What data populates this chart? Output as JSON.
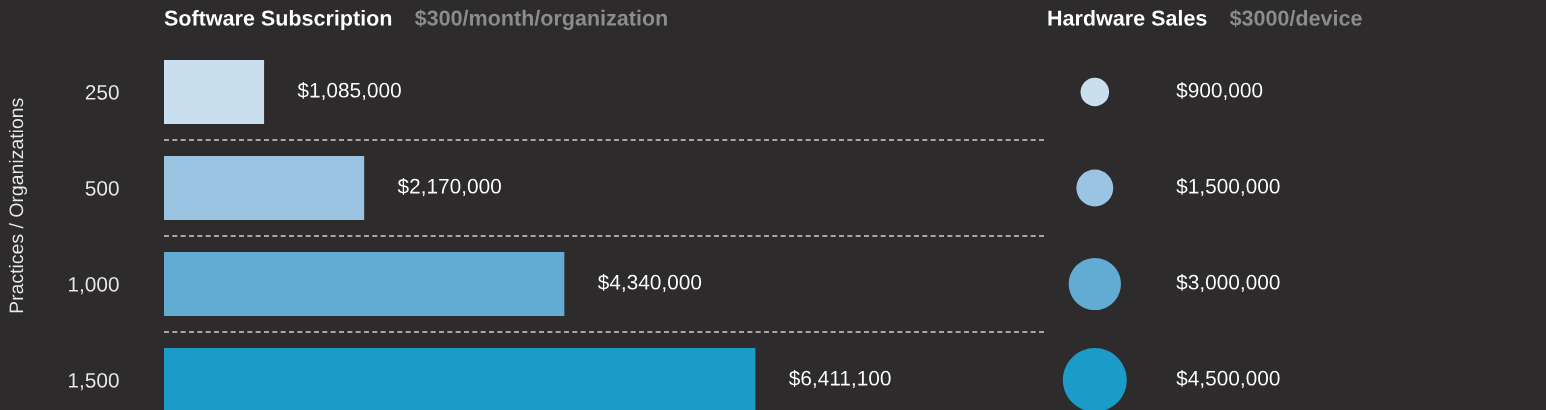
{
  "chart_data": [
    {
      "type": "bar",
      "orientation": "horizontal",
      "title": "Software Subscription",
      "subtitle": "$300/month/organization",
      "ylabel": "Practices / Organizations",
      "grid": "y",
      "categories": [
        "250",
        "500",
        "1,000",
        "1,500"
      ],
      "values": [
        1085000,
        2170000,
        4340000,
        6411100
      ],
      "colors": [
        "#c9dfee",
        "#9ac4e2",
        "#62acd4",
        "#1b9bc8"
      ],
      "value_labels": [
        "$1,085,000",
        "$2,170,000",
        "$4,340,000",
        "$6,411,100"
      ]
    },
    {
      "type": "other",
      "title": "Hardware Sales",
      "subtitle": "$3000/device",
      "categories": [
        null,
        null,
        null,
        null
      ],
      "values": [
        900000,
        1500000,
        3000000,
        4500000
      ],
      "colors": [
        "#c9dfee",
        "#9ac4e2",
        "#62acd4",
        "#1b9bc8"
      ],
      "value_labels": [
        "$900,000",
        "$1,500,000",
        "$3,000,000",
        "$4,500,000"
      ]
    }
  ]
}
